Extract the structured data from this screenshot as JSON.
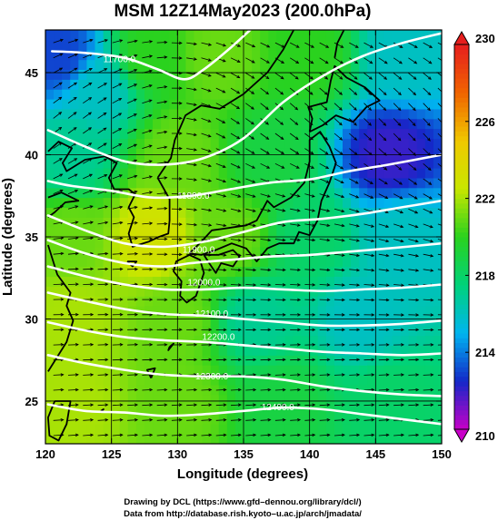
{
  "chart_data": {
    "type": "heatmap",
    "title": "MSM 12Z14May2023 (200.0hPa)",
    "xlabel": "Longitude (degrees)",
    "ylabel": "Latitude  (degrees)",
    "xlim": [
      120,
      150
    ],
    "ylim": [
      22.4,
      47.6
    ],
    "x_ticks": [
      120,
      125,
      130,
      135,
      140,
      145,
      150
    ],
    "y_ticks": [
      25,
      30,
      35,
      40,
      45
    ],
    "colorbar": {
      "min": 210,
      "max": 230,
      "ticks": [
        210,
        214,
        218,
        222,
        226,
        230
      ],
      "colors": [
        "#c800c8",
        "#1428c8",
        "#00b4f0",
        "#00d27a",
        "#2ad21e",
        "#c8e600",
        "#f0c800",
        "#f06400",
        "#e61e1e"
      ]
    },
    "field_samples": [
      {
        "x": 121,
        "y": 46,
        "value": 213
      },
      {
        "x": 124,
        "y": 44,
        "value": 216
      },
      {
        "x": 128,
        "y": 46,
        "value": 220
      },
      {
        "x": 133,
        "y": 46,
        "value": 221
      },
      {
        "x": 140,
        "y": 46,
        "value": 220
      },
      {
        "x": 147,
        "y": 46,
        "value": 216
      },
      {
        "x": 122,
        "y": 40,
        "value": 217
      },
      {
        "x": 130,
        "y": 40,
        "value": 221
      },
      {
        "x": 137,
        "y": 40,
        "value": 219
      },
      {
        "x": 146,
        "y": 40,
        "value": 212
      },
      {
        "x": 122,
        "y": 35,
        "value": 221
      },
      {
        "x": 128,
        "y": 35,
        "value": 223
      },
      {
        "x": 134,
        "y": 35,
        "value": 221
      },
      {
        "x": 140,
        "y": 35,
        "value": 218
      },
      {
        "x": 147,
        "y": 35,
        "value": 216
      },
      {
        "x": 122,
        "y": 30,
        "value": 222
      },
      {
        "x": 130,
        "y": 30,
        "value": 221
      },
      {
        "x": 136,
        "y": 30,
        "value": 217
      },
      {
        "x": 144,
        "y": 30,
        "value": 216
      },
      {
        "x": 122,
        "y": 25,
        "value": 222
      },
      {
        "x": 130,
        "y": 25,
        "value": 221
      },
      {
        "x": 138,
        "y": 25,
        "value": 219
      },
      {
        "x": 146,
        "y": 25,
        "value": 218
      }
    ],
    "contours": [
      {
        "label": "11700.0",
        "label_at": [
          125.6,
          45.8
        ],
        "points": [
          [
            120.5,
            46.3
          ],
          [
            123,
            46.2
          ],
          [
            126,
            45.9
          ],
          [
            128.5,
            45.2
          ],
          [
            130.5,
            44.6
          ],
          [
            132,
            45.2
          ],
          [
            134,
            46.5
          ],
          [
            135.5,
            47.6
          ]
        ]
      },
      {
        "label": "",
        "label_at": null,
        "points": [
          [
            120.2,
            41.5
          ],
          [
            123,
            40.5
          ],
          [
            126,
            39.6
          ],
          [
            129,
            39.4
          ],
          [
            132,
            39.8
          ],
          [
            135,
            41
          ],
          [
            138,
            43.2
          ],
          [
            141,
            44.8
          ],
          [
            144,
            46
          ],
          [
            147,
            46.8
          ],
          [
            150,
            47.4
          ]
        ]
      },
      {
        "label": "11800.0",
        "label_at": [
          131.2,
          37.5
        ],
        "points": [
          [
            120.2,
            38.4
          ],
          [
            122,
            38.1
          ],
          [
            125,
            37.8
          ],
          [
            128,
            37.4
          ],
          [
            131,
            37.5
          ],
          [
            134,
            37.9
          ],
          [
            137,
            38.3
          ],
          [
            140,
            38.5
          ],
          [
            143,
            39
          ],
          [
            146,
            39.4
          ],
          [
            150,
            40
          ]
        ]
      },
      {
        "label": "",
        "label_at": null,
        "points": [
          [
            120.2,
            36.3
          ],
          [
            123,
            35.4
          ],
          [
            126,
            34.6
          ],
          [
            129,
            34.4
          ],
          [
            132,
            34.7
          ],
          [
            135,
            35.3
          ],
          [
            138,
            35.9
          ],
          [
            141,
            36.1
          ],
          [
            144,
            36.4
          ],
          [
            147,
            36.8
          ],
          [
            150,
            37.2
          ]
        ]
      },
      {
        "label": "11900.0",
        "label_at": [
          131.6,
          34.2
        ],
        "points": [
          [
            120.2,
            34.8
          ],
          [
            123,
            34
          ],
          [
            126,
            33.4
          ],
          [
            129,
            33.2
          ],
          [
            131,
            33.4
          ],
          [
            134,
            33.6
          ],
          [
            137,
            33.8
          ],
          [
            140,
            33.9
          ],
          [
            143,
            34.1
          ],
          [
            146,
            34.3
          ],
          [
            150,
            34.6
          ]
        ]
      },
      {
        "label": "12000.0",
        "label_at": [
          132,
          32.2
        ],
        "points": [
          [
            120.2,
            33.2
          ],
          [
            123,
            32.6
          ],
          [
            126,
            32.1
          ],
          [
            129,
            31.8
          ],
          [
            132,
            31.8
          ],
          [
            135,
            31.9
          ],
          [
            138,
            31.8
          ],
          [
            141,
            31.7
          ],
          [
            144,
            31.8
          ],
          [
            147,
            31.9
          ],
          [
            150,
            32.1
          ]
        ]
      },
      {
        "label": "12100.0",
        "label_at": [
          132.6,
          30.3
        ],
        "points": [
          [
            120.2,
            31.6
          ],
          [
            123,
            31.1
          ],
          [
            126,
            30.6
          ],
          [
            129,
            30.3
          ],
          [
            132,
            30.2
          ],
          [
            135,
            30
          ],
          [
            138,
            29.8
          ],
          [
            141,
            29.6
          ],
          [
            144,
            29.6
          ],
          [
            147,
            29.7
          ],
          [
            150,
            29.9
          ]
        ]
      },
      {
        "label": "12200.0",
        "label_at": [
          133.1,
          28.9
        ],
        "points": [
          [
            120.2,
            29.8
          ],
          [
            123,
            29.3
          ],
          [
            126,
            28.9
          ],
          [
            129,
            28.7
          ],
          [
            132,
            28.6
          ],
          [
            135,
            28.4
          ],
          [
            138,
            28.2
          ],
          [
            141,
            28
          ],
          [
            144,
            27.9
          ],
          [
            147,
            27.8
          ],
          [
            150,
            27.9
          ]
        ]
      },
      {
        "label": "12300.0",
        "label_at": [
          132.6,
          26.5
        ],
        "points": [
          [
            120.2,
            27.8
          ],
          [
            123,
            27.3
          ],
          [
            126,
            26.9
          ],
          [
            129,
            26.6
          ],
          [
            132,
            26.5
          ],
          [
            135,
            26.5
          ],
          [
            138,
            26.3
          ],
          [
            141,
            25.9
          ],
          [
            144,
            25.6
          ],
          [
            147,
            25.4
          ],
          [
            150,
            25.3
          ]
        ]
      },
      {
        "label": "12400.0",
        "label_at": [
          137.6,
          24.6
        ],
        "points": [
          [
            120.2,
            24.8
          ],
          [
            123,
            24.4
          ],
          [
            126,
            24.3
          ],
          [
            129,
            24.1
          ],
          [
            132,
            24.2
          ],
          [
            135,
            24.4
          ],
          [
            138,
            24.6
          ],
          [
            141,
            24.5
          ],
          [
            144,
            24.2
          ],
          [
            147,
            23.9
          ],
          [
            150,
            23.6
          ]
        ]
      }
    ],
    "flow": {
      "direction": "west-to-east",
      "trough_axis_lon": 130
    }
  },
  "credits": {
    "line1": "Drawing by DCL (https://www.gfd–dennou.org/library/dcl/)",
    "line2": "Data from http://database.rish.kyoto–u.ac.jp/arch/jmadata/"
  }
}
